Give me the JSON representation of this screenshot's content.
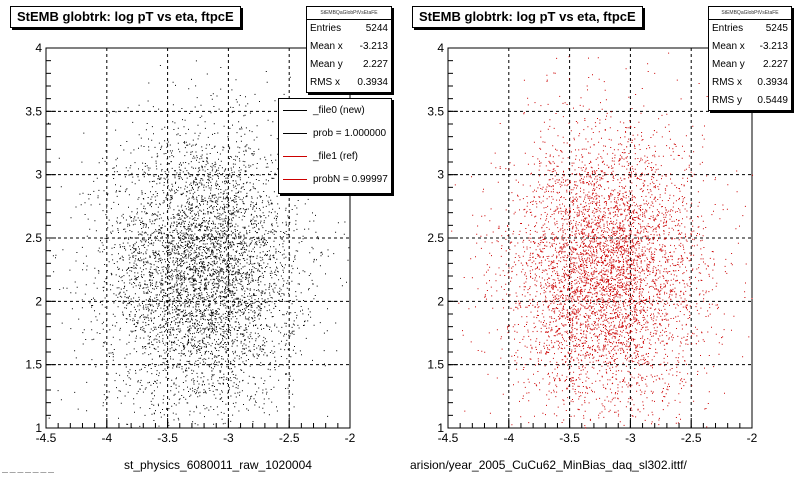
{
  "panels": [
    {
      "title": "StEMB globtrk: log pT vs eta, ftpcE",
      "stats_header": "StEMBQaGlobPtVsEtaFE",
      "stats": [
        {
          "label": "Entries",
          "value": "5244"
        },
        {
          "label": "Mean x",
          "value": "-3.213"
        },
        {
          "label": "Mean y",
          "value": "2.227"
        },
        {
          "label": "RMS x",
          "value": "0.3934"
        }
      ],
      "footer": "st_physics_6080011_raw_1020004"
    },
    {
      "title": "StEMB globtrk: log pT vs eta, ftpcE",
      "stats_header": "StEMBQaGlobPtVsEtaFE",
      "stats": [
        {
          "label": "Entries",
          "value": "5245"
        },
        {
          "label": "Mean x",
          "value": "-3.213"
        },
        {
          "label": "Mean y",
          "value": "2.227"
        },
        {
          "label": "RMS x",
          "value": "0.3934"
        },
        {
          "label": "RMS y",
          "value": "0.5449"
        }
      ],
      "footer": "arision/year_2005_CuCu62_MinBias_daq_sl302.ittf/"
    }
  ],
  "legend": [
    {
      "label": "_file0 (new)",
      "color": "#000000"
    },
    {
      "label": "prob = 1.000000",
      "color": "#000000"
    },
    {
      "label": "_file1 (ref)",
      "color": "#cc0000"
    },
    {
      "label": "probN = 0.99997",
      "color": "#cc0000"
    }
  ],
  "corner_text": "— — — — — — —",
  "chart_data": [
    {
      "type": "scatter",
      "title": "StEMB globtrk: log pT vs eta, ftpcE",
      "xlabel": "",
      "ylabel": "",
      "xlim": [
        -4.5,
        -2
      ],
      "ylim": [
        1,
        4
      ],
      "xticks": [
        "-4.5",
        "-4",
        "-3.5",
        "-3",
        "-2.5",
        "-2"
      ],
      "yticks": [
        "1",
        "1.5",
        "2",
        "2.5",
        "3",
        "3.5",
        "4"
      ],
      "grid": true,
      "marker_color": "#000000",
      "entries": 5244,
      "mean_x": -3.213,
      "mean_y": 2.227,
      "rms_x": 0.3934
    },
    {
      "type": "scatter",
      "title": "StEMB globtrk: log pT vs eta, ftpcE",
      "xlabel": "",
      "ylabel": "",
      "xlim": [
        -4.5,
        -2
      ],
      "ylim": [
        1,
        4
      ],
      "xticks": [
        "-4.5",
        "-4",
        "-3.5",
        "-3",
        "-2.5",
        "-2"
      ],
      "yticks": [
        "1",
        "1.5",
        "2",
        "2.5",
        "3",
        "3.5",
        "4"
      ],
      "grid": true,
      "marker_color": "#cc0000",
      "entries": 5245,
      "mean_x": -3.213,
      "mean_y": 2.227,
      "rms_x": 0.3934,
      "rms_y": 0.5449
    }
  ]
}
